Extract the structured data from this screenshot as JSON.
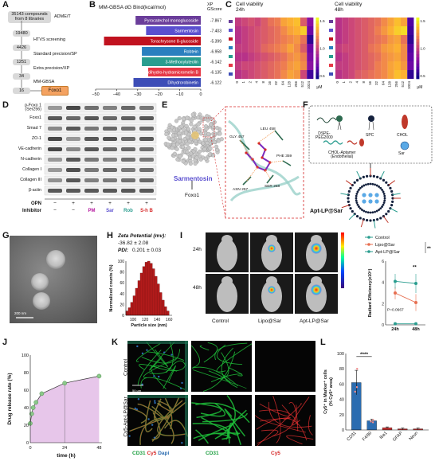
{
  "panels": {
    "A": {
      "letter": "A",
      "boxes": [
        "35143 compounds from 8 libraries",
        "19480",
        "4426",
        "1251",
        "34",
        "16"
      ],
      "steps": [
        "ADME/T",
        "HTVS screening",
        "Standard precision/SP",
        "Extra precision/XP",
        "MM-GBSA"
      ],
      "target": "Foxo1"
    },
    "B": {
      "letter": "B",
      "title": "MM-GBSA dG Bind(kcal/mol)",
      "score_header": "XP\nGScore",
      "xticks": [
        "−50",
        "−40",
        "−30",
        "−20",
        "−10",
        "0"
      ]
    },
    "C": {
      "letter": "C",
      "title_left": "Cell viability\n24h",
      "title_right": "Cell viability\n48h",
      "xticks": [
        "0",
        "1",
        "2",
        "4",
        "8",
        "16",
        "32",
        "64",
        "128",
        "256",
        "512",
        "1024"
      ],
      "unit": "μM",
      "cbar_ticks": [
        "1.5",
        "1.0",
        "0.5"
      ]
    },
    "D": {
      "letter": "D",
      "rows": [
        "p-Foxo 1\n(Ser256)",
        "Foxo1",
        "Smad 7",
        "ZO-1",
        "VE-cadherin",
        "N-cadherin",
        "Collagen I",
        "Collagen III",
        "β-actin"
      ],
      "opn_label": "OPN",
      "inhibitor_label": "Inhibitor",
      "opn_signs": [
        "−",
        "+",
        "+",
        "+",
        "+",
        "+"
      ],
      "inhibitor_signs": [
        "−",
        "−"
      ],
      "inhibitors": [
        {
          "label": "PM",
          "color": "#b5179e"
        },
        {
          "label": "Sar",
          "color": "#5a4fcf"
        },
        {
          "label": "Rob",
          "color": "#2a9d8f"
        },
        {
          "label": "S-h B",
          "color": "#d62828"
        }
      ]
    },
    "E": {
      "letter": "E",
      "compound": "Sarmentosin",
      "target": "Foxo1",
      "residues": [
        "LEU 458",
        "GLY 457",
        "PHE 359",
        "ASN 257",
        "SER 258"
      ]
    },
    "F": {
      "letter": "F",
      "legend": [
        "DSPE-\nPEG2000",
        "SPC",
        "CHOL",
        "CHOL-Aptamer\n(Endothelial)",
        "Sar"
      ],
      "product": "Apt-LP@Sar"
    },
    "G": {
      "letter": "G",
      "scale": "200 nm"
    },
    "H": {
      "letter": "H",
      "zeta_label": "Zeta Potential (mv):",
      "zeta_value": "-36.82 ± 2.08",
      "pdi_label": "PDI:",
      "pdi_value": "0.201 ± 0.03",
      "ylabel": "Normalized counts (%)",
      "xlabel": "Particle size (nm)",
      "yticks": [
        "100",
        "80",
        "60",
        "40",
        "20",
        "0"
      ],
      "xticks": [
        "100",
        "120",
        "140",
        "160"
      ]
    },
    "I": {
      "letter": "I",
      "rows": [
        "24h",
        "48h"
      ],
      "cols": [
        "Control",
        "Lipo@Sar",
        "Apt-LP@Sar"
      ],
      "legend": [
        "Control",
        "Lipo@Sar",
        "Apt-LP@Sar"
      ],
      "ylabel": "Radiant Efficiency(x10⁸)",
      "xticks": [
        "24h",
        "48h"
      ],
      "yticks": [
        "6",
        "4",
        "2",
        "0"
      ],
      "sig_top": "**",
      "sig_mid": "**",
      "p_value": "P=0.0667"
    },
    "J": {
      "letter": "J",
      "ylabel": "Drug release rate (%)",
      "xlabel": "time (h)",
      "yticks": [
        "100",
        "80",
        "60",
        "40",
        "20",
        "0"
      ],
      "xticks": [
        "0",
        "24",
        "48"
      ]
    },
    "K": {
      "letter": "K",
      "rows": [
        "Control",
        "Cy5-Apt-LP@Sar"
      ],
      "legend_merge": [
        "CD31",
        "Cy5",
        "Dapi"
      ],
      "legend_cd31": "CD31",
      "legend_cy5": "Cy5",
      "scale": "50 μm"
    },
    "L": {
      "letter": "L",
      "ylabel": "Cy5⁺ in Marker⁺ cells\n(% Cy5⁺ area)",
      "sig": "****",
      "yticks": [
        "100",
        "80",
        "60",
        "40",
        "20",
        "0"
      ]
    }
  },
  "chart_data": [
    {
      "type": "bar",
      "id": "B",
      "title": "MM-GBSA dG Bind(kcal/mol)",
      "orientation": "horizontal",
      "xlim": [
        -50,
        0
      ],
      "categories": [
        "Pyrocatechol monoglucoside",
        "Sarmentosin",
        "Torachrysone 8-glucoside",
        "Robtein",
        "3-Methoxyluteolin",
        "Secodihydro-hydramicromelin B",
        "Dihydrorobinetin"
      ],
      "values": [
        -31,
        -26,
        -46,
        -28,
        -28,
        -25,
        -32
      ],
      "scores": [
        "-7.867",
        "-7.403",
        "-5.399",
        "-6.958",
        "-6.142",
        "-6.135",
        "-6.122"
      ],
      "colors": [
        "#6a3d9a",
        "#5a4fcf",
        "#c1121f",
        "#2a7fbf",
        "#2a9d8f",
        "#e63946",
        "#3d4db7"
      ]
    },
    {
      "type": "heatmap",
      "id": "C-24h",
      "x": [
        "0",
        "1",
        "2",
        "4",
        "8",
        "16",
        "32",
        "64",
        "128",
        "256",
        "512",
        "1024"
      ],
      "rows": 7,
      "values": [
        [
          0.85,
          0.9,
          0.95,
          0.9,
          1.0,
          1.1,
          1.15,
          1.3,
          1.35,
          1.4,
          1.0,
          0.6
        ],
        [
          0.8,
          0.85,
          0.9,
          0.95,
          1.0,
          1.05,
          1.1,
          1.2,
          1.3,
          1.35,
          1.45,
          0.5
        ],
        [
          0.8,
          0.85,
          0.9,
          0.95,
          1.0,
          1.05,
          1.1,
          1.15,
          1.2,
          1.25,
          1.1,
          0.3
        ],
        [
          0.85,
          0.85,
          0.9,
          0.95,
          1.05,
          1.1,
          1.15,
          1.2,
          1.3,
          1.2,
          1.0,
          0.5
        ],
        [
          0.8,
          0.8,
          0.85,
          0.9,
          0.95,
          1.0,
          1.05,
          1.1,
          1.2,
          1.25,
          1.15,
          0.55
        ],
        [
          0.85,
          0.9,
          0.9,
          0.95,
          1.0,
          1.05,
          1.1,
          1.15,
          1.25,
          1.3,
          1.2,
          0.6
        ],
        [
          0.8,
          0.85,
          0.9,
          0.95,
          1.0,
          1.05,
          1.1,
          1.2,
          1.3,
          1.25,
          0.9,
          0.35
        ]
      ]
    },
    {
      "type": "heatmap",
      "id": "C-48h",
      "x": [
        "0",
        "1",
        "2",
        "4",
        "8",
        "16",
        "32",
        "64",
        "128",
        "256",
        "512",
        "1024"
      ],
      "rows": 7,
      "values": [
        [
          0.8,
          0.85,
          0.9,
          0.95,
          1.0,
          1.05,
          1.1,
          1.2,
          1.3,
          1.4,
          1.3,
          0.4
        ],
        [
          0.8,
          0.85,
          0.9,
          0.95,
          1.0,
          1.05,
          1.15,
          1.25,
          1.35,
          1.45,
          1.5,
          0.35
        ],
        [
          0.8,
          0.85,
          0.9,
          0.95,
          1.0,
          1.05,
          1.1,
          1.15,
          1.25,
          1.3,
          1.1,
          0.3
        ],
        [
          0.85,
          0.9,
          0.9,
          0.95,
          1.0,
          1.1,
          1.15,
          1.25,
          1.3,
          1.35,
          1.2,
          0.4
        ],
        [
          0.8,
          0.85,
          0.9,
          0.95,
          1.0,
          1.05,
          1.1,
          1.2,
          1.25,
          1.3,
          1.2,
          0.45
        ],
        [
          0.85,
          0.85,
          0.9,
          0.95,
          1.0,
          1.05,
          1.15,
          1.2,
          1.3,
          1.35,
          1.25,
          0.5
        ],
        [
          0.8,
          0.85,
          0.9,
          1.0,
          1.05,
          1.1,
          1.15,
          1.2,
          1.3,
          1.4,
          1.35,
          0.3
        ]
      ],
      "row_colors": [
        "#6a3d9a",
        "#5a4fcf",
        "#c1121f",
        "#2a7fbf",
        "#2a9d8f",
        "#e63946",
        "#3d4db7"
      ]
    },
    {
      "type": "bar",
      "id": "H",
      "xlabel": "Particle size (nm)",
      "ylabel": "Normalized counts (%)",
      "x": [
        90,
        94,
        98,
        102,
        106,
        110,
        114,
        118,
        122,
        126,
        130,
        134,
        138,
        142,
        146,
        150,
        154,
        158
      ],
      "values": [
        8,
        14,
        24,
        36,
        50,
        64,
        78,
        90,
        98,
        100,
        96,
        86,
        72,
        58,
        42,
        28,
        16,
        8
      ],
      "ylim": [
        0,
        100
      ]
    },
    {
      "type": "line",
      "id": "I",
      "ylabel": "Radiant Efficiency(x10⁸)",
      "categories": [
        "24h",
        "48h"
      ],
      "ylim": [
        0,
        6
      ],
      "series": [
        {
          "name": "Control",
          "values": [
            0.1,
            0.1
          ],
          "errors": [
            0.05,
            0.05
          ],
          "color": "#2a9d8f"
        },
        {
          "name": "Lipo@Sar",
          "values": [
            3.0,
            2.1
          ],
          "errors": [
            0.6,
            0.8
          ],
          "color": "#e76f51"
        },
        {
          "name": "Apt-LP@Sar",
          "values": [
            4.1,
            3.9
          ],
          "errors": [
            0.7,
            0.9
          ],
          "color": "#2a9d8f"
        }
      ]
    },
    {
      "type": "line",
      "id": "J",
      "xlabel": "time (h)",
      "ylabel": "Drug release rate (%)",
      "x": [
        0,
        1,
        2,
        4,
        8,
        24,
        48
      ],
      "values": [
        22,
        33,
        40,
        46,
        56,
        68,
        76
      ],
      "ylim": [
        0,
        100
      ],
      "xlim": [
        0,
        50
      ]
    },
    {
      "type": "bar",
      "id": "L",
      "ylabel": "Cy5⁺ in Marker⁺ cells (% Cy5⁺ area)",
      "categories": [
        "CD31",
        "F4/80",
        "Iba1",
        "GFAP",
        "Neun"
      ],
      "values": [
        62,
        12,
        3,
        1.5,
        1.5
      ],
      "errors": [
        16,
        2,
        1,
        1,
        1
      ],
      "colors": [
        "#2b6cb0",
        "#2b6cb0",
        "#c53030",
        "#c53030",
        "#c53030"
      ],
      "ylim": [
        0,
        100
      ]
    }
  ]
}
